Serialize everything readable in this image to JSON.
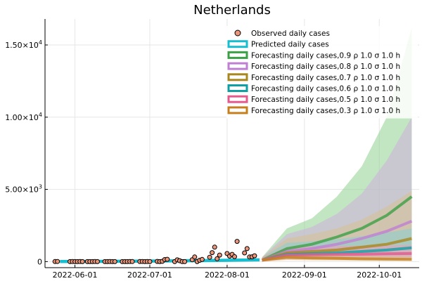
{
  "chart_data": {
    "type": "line",
    "title": "Netherlands",
    "xlabel": "",
    "ylabel": "",
    "x_axis": {
      "type": "date",
      "range": [
        "2022-05-20",
        "2022-10-17"
      ],
      "ticks": [
        "2022-06-01",
        "2022-07-01",
        "2022-08-01",
        "2022-09-01",
        "2022-10-01"
      ],
      "tick_labels": [
        "2022-06-01",
        "2022-07-01",
        "2022-08-01",
        "2022-09-01",
        "2022-10-01"
      ]
    },
    "y_axis": {
      "range": [
        -420,
        16800
      ],
      "ticks": [
        0,
        5000,
        10000,
        15000
      ],
      "tick_labels": [
        {
          "base": "0",
          "exp": ""
        },
        {
          "base": "5.00×10",
          "exp": "3"
        },
        {
          "base": "1.00×10",
          "exp": "4"
        },
        {
          "base": "1.50×10",
          "exp": "4"
        }
      ]
    },
    "grid": true,
    "legend_position": "top-right",
    "observed": {
      "name": "Observed daily cases",
      "color": "#e9967a",
      "x": [
        "2022-05-24",
        "2022-05-25",
        "2022-05-30",
        "2022-05-31",
        "2022-06-01",
        "2022-06-02",
        "2022-06-03",
        "2022-06-04",
        "2022-06-06",
        "2022-06-07",
        "2022-06-08",
        "2022-06-09",
        "2022-06-10",
        "2022-06-13",
        "2022-06-14",
        "2022-06-15",
        "2022-06-16",
        "2022-06-17",
        "2022-06-20",
        "2022-06-21",
        "2022-06-22",
        "2022-06-23",
        "2022-06-24",
        "2022-06-27",
        "2022-06-28",
        "2022-06-29",
        "2022-06-30",
        "2022-07-01",
        "2022-07-04",
        "2022-07-05",
        "2022-07-06",
        "2022-07-07",
        "2022-07-08",
        "2022-07-11",
        "2022-07-12",
        "2022-07-13",
        "2022-07-14",
        "2022-07-15",
        "2022-07-18",
        "2022-07-19",
        "2022-07-20",
        "2022-07-21",
        "2022-07-22",
        "2022-07-25",
        "2022-07-26",
        "2022-07-27",
        "2022-07-28",
        "2022-07-29",
        "2022-08-01",
        "2022-08-02",
        "2022-08-03",
        "2022-08-04",
        "2022-08-05",
        "2022-08-08",
        "2022-08-09",
        "2022-08-10",
        "2022-08-11",
        "2022-08-12"
      ],
      "y": [
        5,
        8,
        0,
        2,
        0,
        0,
        3,
        0,
        0,
        0,
        0,
        5,
        0,
        0,
        0,
        2,
        0,
        0,
        0,
        0,
        0,
        5,
        2,
        3,
        10,
        0,
        5,
        0,
        15,
        0,
        20,
        140,
        160,
        0,
        120,
        60,
        0,
        0,
        130,
        320,
        0,
        90,
        150,
        300,
        620,
        1000,
        200,
        450,
        560,
        380,
        500,
        340,
        1400,
        600,
        900,
        320,
        330,
        400
      ]
    },
    "predicted": {
      "name": "Predicted daily cases",
      "color": "#17becf",
      "x": [
        "2022-05-26",
        "2022-06-15",
        "2022-07-05",
        "2022-07-25",
        "2022-08-14"
      ],
      "y": [
        10,
        20,
        40,
        70,
        120
      ]
    },
    "forecast_x": [
      "2022-08-15",
      "2022-08-25",
      "2022-09-04",
      "2022-09-14",
      "2022-09-24",
      "2022-10-04",
      "2022-10-14"
    ],
    "forecasts": [
      {
        "name": "Forecasting daily cases,0.9 ρ 1.0 σ 1.0 h",
        "color": "#3ca047",
        "band_color": "#8fd08f",
        "mean": [
          100,
          900,
          1200,
          1700,
          2300,
          3200,
          4500
        ],
        "lower": [
          0,
          300,
          300,
          400,
          500,
          700,
          900
        ],
        "upper": [
          300,
          2300,
          3000,
          4500,
          6600,
          10000,
          16200
        ]
      },
      {
        "name": "Forecasting daily cases,0.8 ρ 1.0 σ 1.0 h",
        "color": "#bf7fd3",
        "band_color": "#cfb0de",
        "mean": [
          100,
          700,
          900,
          1200,
          1600,
          2100,
          2800
        ],
        "lower": [
          0,
          250,
          250,
          300,
          350,
          450,
          550
        ],
        "upper": [
          300,
          1900,
          2400,
          3300,
          4700,
          7000,
          10000
        ]
      },
      {
        "name": "Forecasting daily cases,0.7 ρ 1.0 σ 1.0 h",
        "color": "#a8871e",
        "band_color": "#d5c192",
        "mean": [
          100,
          600,
          700,
          800,
          1000,
          1200,
          1600
        ],
        "lower": [
          0,
          200,
          200,
          220,
          250,
          300,
          350
        ],
        "upper": [
          300,
          1600,
          1900,
          2300,
          2900,
          3800,
          4900
        ]
      },
      {
        "name": "Forecasting daily cases,0.6 ρ 1.0 σ 1.0 h",
        "color": "#0fa0a4",
        "band_color": "#86cfd0",
        "mean": [
          100,
          500,
          550,
          600,
          700,
          800,
          950
        ],
        "lower": [
          0,
          180,
          180,
          190,
          200,
          220,
          240
        ],
        "upper": [
          300,
          1300,
          1400,
          1550,
          1750,
          2000,
          2300
        ]
      },
      {
        "name": "Forecasting daily cases,0.5 ρ 1.0 σ 1.0 h",
        "color": "#e55a8c",
        "band_color": "#ef9bb8",
        "mean": [
          100,
          450,
          470,
          490,
          510,
          540,
          560
        ],
        "lower": [
          0,
          150,
          150,
          160,
          160,
          170,
          170
        ],
        "upper": [
          300,
          1000,
          1050,
          1080,
          1100,
          1120,
          1150
        ]
      },
      {
        "name": "Forecasting daily cases,0.3 ρ 1.0 σ 1.0 h",
        "color": "#c67f1c",
        "band_color": "#e4bc8a",
        "mean": [
          100,
          300,
          250,
          220,
          190,
          170,
          150
        ],
        "lower": [
          0,
          100,
          80,
          70,
          60,
          55,
          50
        ],
        "upper": [
          300,
          700,
          600,
          500,
          420,
          380,
          350
        ]
      }
    ]
  }
}
